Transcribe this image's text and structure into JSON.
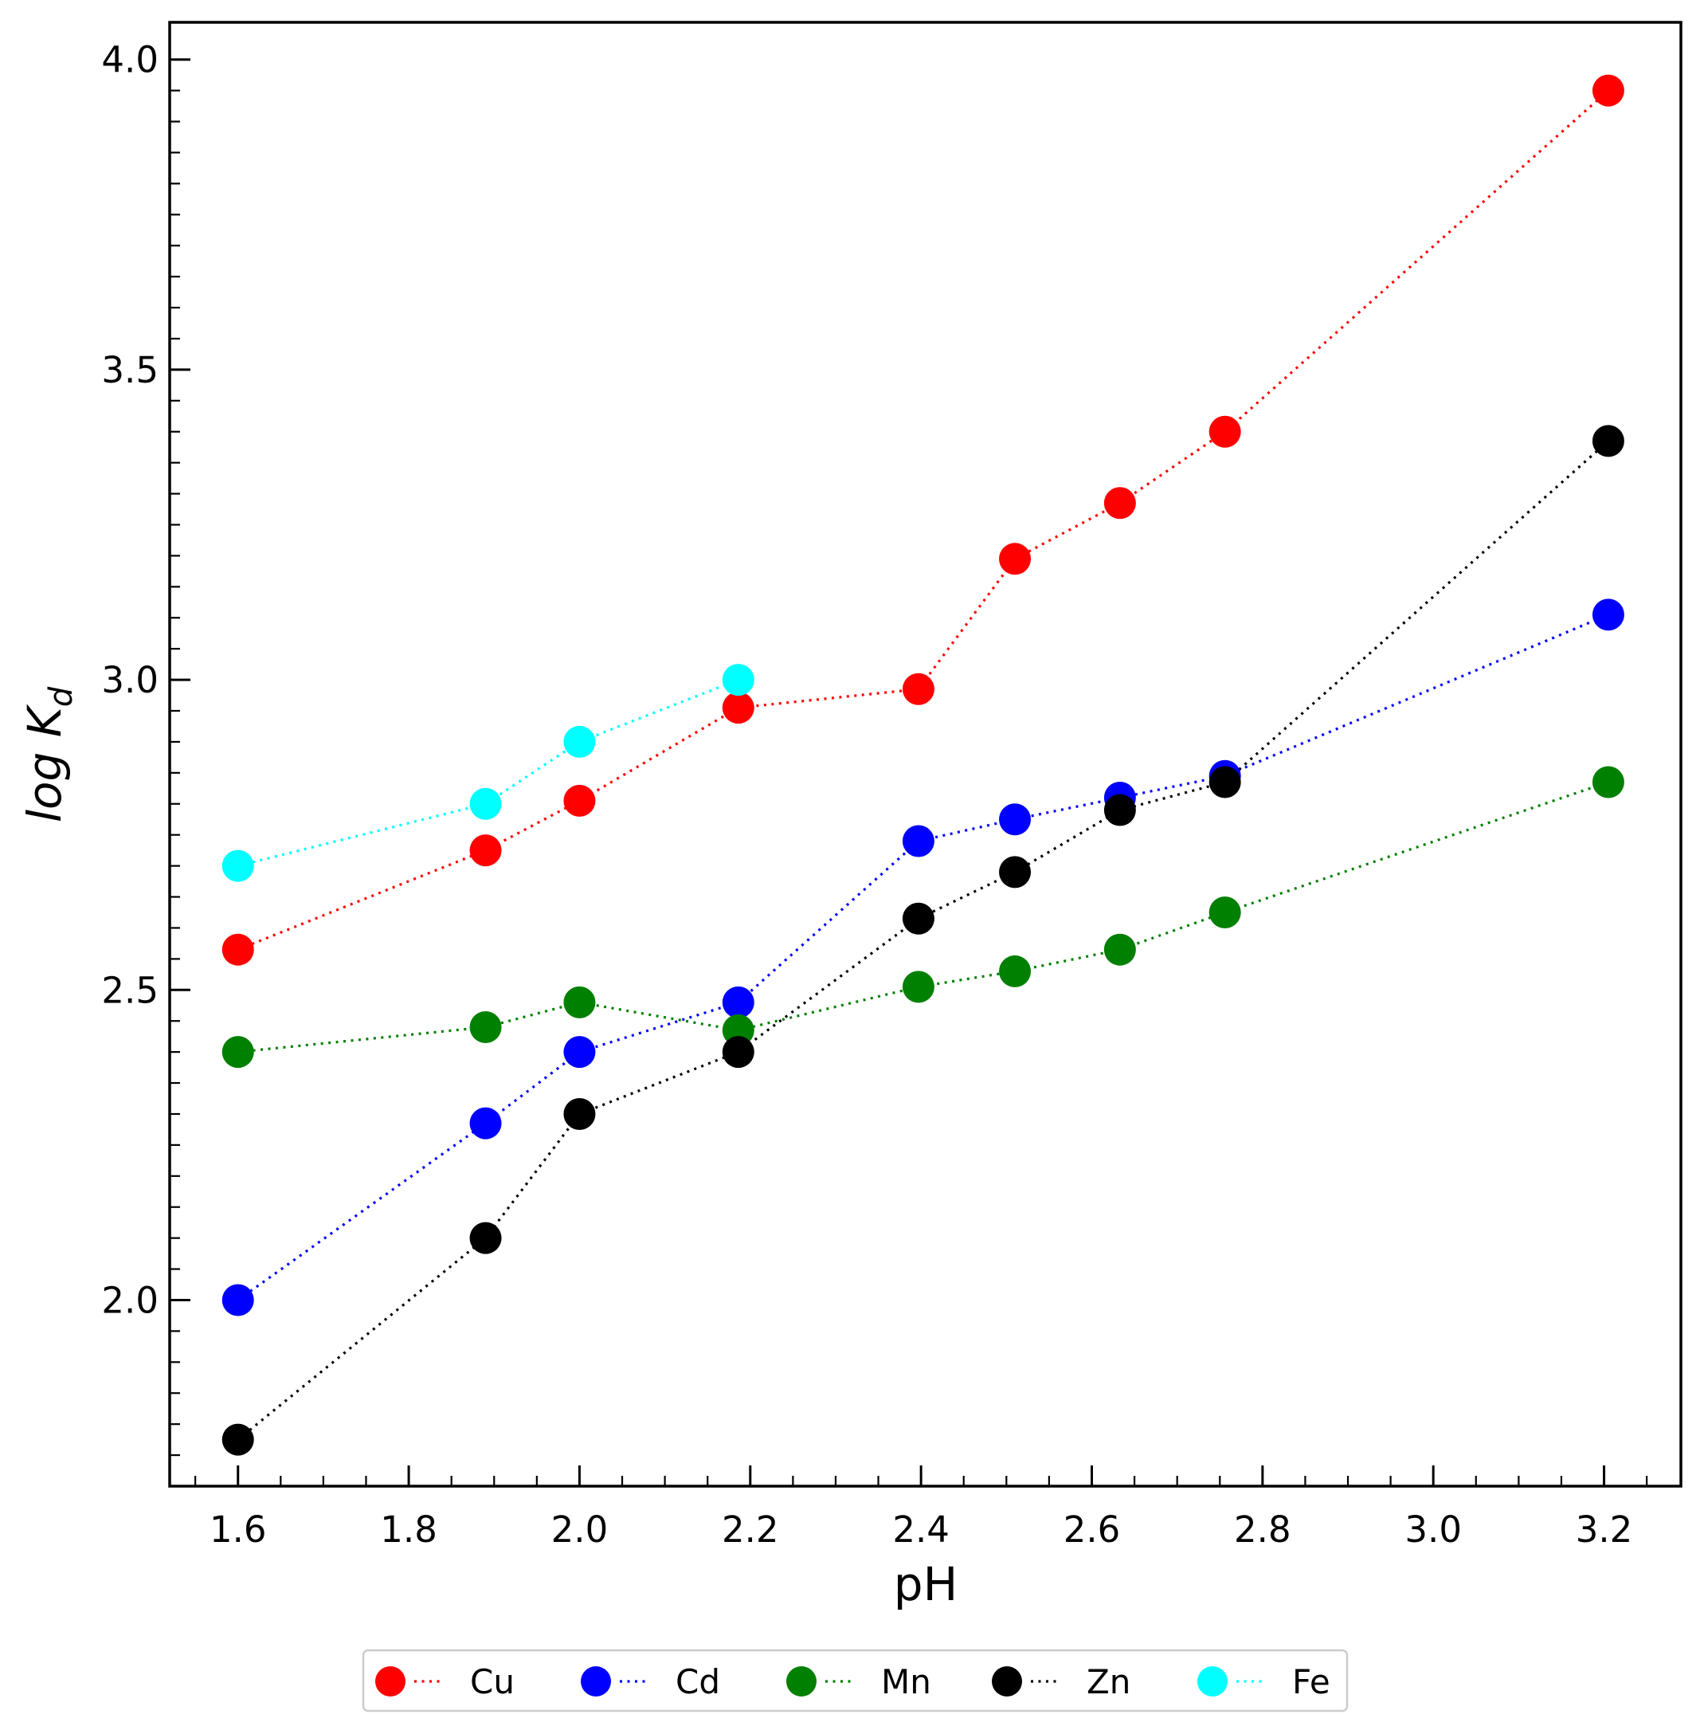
{
  "chart_data": {
    "type": "line",
    "xlabel": "pH",
    "ylabel_main": "log K",
    "ylabel_sub": "d",
    "xlim": [
      1.52,
      3.29
    ],
    "ylim": [
      1.7,
      4.06
    ],
    "xticks": [
      "1.6",
      "1.8",
      "2.0",
      "2.2",
      "2.4",
      "2.6",
      "2.8",
      "3.0",
      "3.2"
    ],
    "xtick_values": [
      1.6,
      1.8,
      2.0,
      2.2,
      2.4,
      2.6,
      2.8,
      3.0,
      3.2
    ],
    "yticks": [
      "2.0",
      "2.5",
      "3.0",
      "3.5",
      "4.0"
    ],
    "ytick_values": [
      2.0,
      2.5,
      3.0,
      3.5,
      4.0
    ],
    "legend_position": "bottom-center",
    "series": [
      {
        "name": "Cu",
        "color": "#ff0000",
        "x": [
          1.6,
          1.89,
          2.0,
          2.186,
          2.397,
          2.51,
          2.633,
          2.756,
          3.205
        ],
        "y": [
          2.565,
          2.725,
          2.805,
          2.955,
          2.985,
          3.195,
          3.285,
          3.4,
          3.95
        ]
      },
      {
        "name": "Cd",
        "color": "#0000ff",
        "x": [
          1.6,
          1.89,
          2.0,
          2.186,
          2.397,
          2.51,
          2.633,
          2.756,
          3.205
        ],
        "y": [
          2.0,
          2.285,
          2.4,
          2.48,
          2.74,
          2.775,
          2.81,
          2.845,
          3.105
        ]
      },
      {
        "name": "Mn",
        "color": "#008000",
        "x": [
          1.6,
          1.89,
          2.0,
          2.186,
          2.397,
          2.51,
          2.633,
          2.756,
          3.205
        ],
        "y": [
          2.4,
          2.44,
          2.48,
          2.435,
          2.505,
          2.53,
          2.565,
          2.625,
          2.835
        ]
      },
      {
        "name": "Zn",
        "color": "#000000",
        "x": [
          1.6,
          1.89,
          2.0,
          2.186,
          2.397,
          2.51,
          2.633,
          2.756,
          3.205
        ],
        "y": [
          1.775,
          2.1,
          2.3,
          2.4,
          2.615,
          2.69,
          2.79,
          2.835,
          3.385
        ]
      },
      {
        "name": "Fe",
        "color": "#00ffff",
        "x": [
          1.6,
          1.89,
          2.0,
          2.186
        ],
        "y": [
          2.7,
          2.8,
          2.9,
          3.0
        ]
      }
    ]
  }
}
